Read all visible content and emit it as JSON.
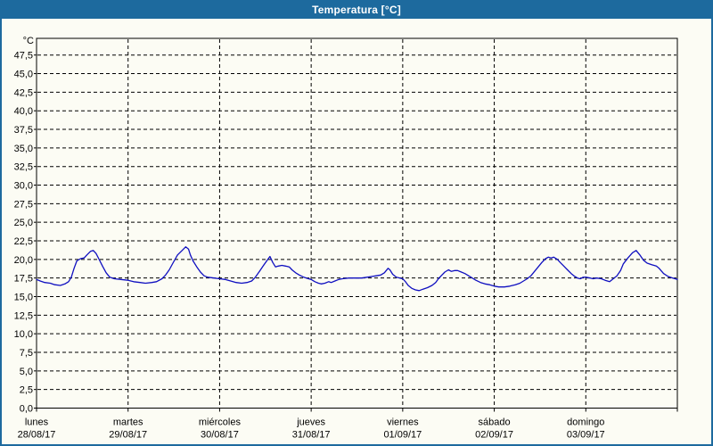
{
  "window": {
    "title": "Temperatura [°C]"
  },
  "colors": {
    "titlebar_bg": "#1d6a9e",
    "titlebar_text": "#ffffff",
    "frame_border": "#1d6a9e",
    "background": "#fcfcf4",
    "grid": "#000000",
    "axis": "#000000",
    "text": "#000000",
    "line": "#0f0fc0"
  },
  "chart_data": {
    "type": "line",
    "title": "Temperatura [°C]",
    "xlabel": "",
    "ylabel": "°C",
    "ylim": [
      0,
      47.5
    ],
    "grid": true,
    "legend": "none",
    "y_axis": {
      "unit_label": "°C",
      "min": 0,
      "max": 47.5,
      "tick_step": 2.5,
      "tick_labels": [
        "0,0",
        "2,5",
        "5,0",
        "7,5",
        "10,0",
        "12,5",
        "15,0",
        "17,5",
        "20,0",
        "22,5",
        "25,0",
        "27,5",
        "30,0",
        "32,5",
        "35,0",
        "37,5",
        "40,0",
        "42,5",
        "45,0",
        "47,5"
      ]
    },
    "x_axis": {
      "days": [
        {
          "name": "lunes",
          "date": "28/08/17"
        },
        {
          "name": "martes",
          "date": "29/08/17"
        },
        {
          "name": "miércoles",
          "date": "30/08/17"
        },
        {
          "name": "jueves",
          "date": "31/08/17"
        },
        {
          "name": "viernes",
          "date": "01/09/17"
        },
        {
          "name": "sábado",
          "date": "02/09/17"
        },
        {
          "name": "domingo",
          "date": "03/09/17"
        }
      ]
    },
    "series": [
      {
        "name": "Temperatura",
        "color": "#0f0fc0",
        "points": [
          [
            0.0,
            17.3
          ],
          [
            0.04,
            17.1
          ],
          [
            0.09,
            16.9
          ],
          [
            0.15,
            16.8
          ],
          [
            0.2,
            16.6
          ],
          [
            0.26,
            16.5
          ],
          [
            0.31,
            16.7
          ],
          [
            0.35,
            17.0
          ],
          [
            0.38,
            17.6
          ],
          [
            0.41,
            18.8
          ],
          [
            0.44,
            19.8
          ],
          [
            0.48,
            20.1
          ],
          [
            0.52,
            20.2
          ],
          [
            0.55,
            20.6
          ],
          [
            0.59,
            21.1
          ],
          [
            0.62,
            21.2
          ],
          [
            0.65,
            20.8
          ],
          [
            0.68,
            20.1
          ],
          [
            0.72,
            19.1
          ],
          [
            0.76,
            18.2
          ],
          [
            0.8,
            17.6
          ],
          [
            0.85,
            17.4
          ],
          [
            0.92,
            17.3
          ],
          [
            1.0,
            17.2
          ],
          [
            1.06,
            17.0
          ],
          [
            1.13,
            16.9
          ],
          [
            1.19,
            16.8
          ],
          [
            1.26,
            16.9
          ],
          [
            1.31,
            17.0
          ],
          [
            1.37,
            17.4
          ],
          [
            1.41,
            17.9
          ],
          [
            1.45,
            18.6
          ],
          [
            1.49,
            19.5
          ],
          [
            1.54,
            20.6
          ],
          [
            1.59,
            21.2
          ],
          [
            1.63,
            21.7
          ],
          [
            1.66,
            21.4
          ],
          [
            1.68,
            20.6
          ],
          [
            1.71,
            19.8
          ],
          [
            1.75,
            19.0
          ],
          [
            1.79,
            18.3
          ],
          [
            1.83,
            17.8
          ],
          [
            1.87,
            17.6
          ],
          [
            1.94,
            17.5
          ],
          [
            2.0,
            17.4
          ],
          [
            2.06,
            17.3
          ],
          [
            2.12,
            17.1
          ],
          [
            2.18,
            16.9
          ],
          [
            2.24,
            16.8
          ],
          [
            2.3,
            16.9
          ],
          [
            2.35,
            17.1
          ],
          [
            2.39,
            17.6
          ],
          [
            2.43,
            18.3
          ],
          [
            2.48,
            19.2
          ],
          [
            2.52,
            19.9
          ],
          [
            2.55,
            20.4
          ],
          [
            2.58,
            19.6
          ],
          [
            2.61,
            19.0
          ],
          [
            2.64,
            19.1
          ],
          [
            2.68,
            19.2
          ],
          [
            2.72,
            19.1
          ],
          [
            2.76,
            19.0
          ],
          [
            2.79,
            18.6
          ],
          [
            2.83,
            18.2
          ],
          [
            2.87,
            17.9
          ],
          [
            2.92,
            17.6
          ],
          [
            2.97,
            17.4
          ],
          [
            3.0,
            17.3
          ],
          [
            3.04,
            17.0
          ],
          [
            3.08,
            16.8
          ],
          [
            3.11,
            16.7
          ],
          [
            3.15,
            16.8
          ],
          [
            3.19,
            17.0
          ],
          [
            3.22,
            16.9
          ],
          [
            3.26,
            17.1
          ],
          [
            3.3,
            17.3
          ],
          [
            3.34,
            17.4
          ],
          [
            3.41,
            17.5
          ],
          [
            3.48,
            17.5
          ],
          [
            3.55,
            17.5
          ],
          [
            3.61,
            17.6
          ],
          [
            3.66,
            17.7
          ],
          [
            3.71,
            17.8
          ],
          [
            3.76,
            17.9
          ],
          [
            3.8,
            18.2
          ],
          [
            3.84,
            18.8
          ],
          [
            3.86,
            18.6
          ],
          [
            3.89,
            18.0
          ],
          [
            3.93,
            17.6
          ],
          [
            3.97,
            17.5
          ],
          [
            4.0,
            17.4
          ],
          [
            4.03,
            17.0
          ],
          [
            4.06,
            16.5
          ],
          [
            4.1,
            16.1
          ],
          [
            4.14,
            15.9
          ],
          [
            4.18,
            15.8
          ],
          [
            4.22,
            16.0
          ],
          [
            4.27,
            16.2
          ],
          [
            4.32,
            16.5
          ],
          [
            4.36,
            16.9
          ],
          [
            4.39,
            17.4
          ],
          [
            4.42,
            17.8
          ],
          [
            4.46,
            18.3
          ],
          [
            4.5,
            18.6
          ],
          [
            4.53,
            18.4
          ],
          [
            4.57,
            18.5
          ],
          [
            4.6,
            18.5
          ],
          [
            4.64,
            18.3
          ],
          [
            4.68,
            18.1
          ],
          [
            4.72,
            17.8
          ],
          [
            4.76,
            17.5
          ],
          [
            4.8,
            17.2
          ],
          [
            4.85,
            16.9
          ],
          [
            4.9,
            16.7
          ],
          [
            4.95,
            16.6
          ],
          [
            5.0,
            16.4
          ],
          [
            5.05,
            16.3
          ],
          [
            5.11,
            16.3
          ],
          [
            5.17,
            16.4
          ],
          [
            5.23,
            16.6
          ],
          [
            5.28,
            16.8
          ],
          [
            5.32,
            17.1
          ],
          [
            5.36,
            17.4
          ],
          [
            5.4,
            17.8
          ],
          [
            5.44,
            18.4
          ],
          [
            5.48,
            19.0
          ],
          [
            5.52,
            19.6
          ],
          [
            5.56,
            20.1
          ],
          [
            5.59,
            20.3
          ],
          [
            5.62,
            20.2
          ],
          [
            5.65,
            20.3
          ],
          [
            5.69,
            20.0
          ],
          [
            5.72,
            19.6
          ],
          [
            5.76,
            19.1
          ],
          [
            5.8,
            18.6
          ],
          [
            5.84,
            18.1
          ],
          [
            5.88,
            17.7
          ],
          [
            5.91,
            17.5
          ],
          [
            5.94,
            17.4
          ],
          [
            5.97,
            17.6
          ],
          [
            6.0,
            17.6
          ],
          [
            6.05,
            17.5
          ],
          [
            6.08,
            17.4
          ],
          [
            6.12,
            17.5
          ],
          [
            6.17,
            17.4
          ],
          [
            6.21,
            17.2
          ],
          [
            6.26,
            17.0
          ],
          [
            6.3,
            17.4
          ],
          [
            6.34,
            17.8
          ],
          [
            6.38,
            18.5
          ],
          [
            6.41,
            19.4
          ],
          [
            6.46,
            20.2
          ],
          [
            6.51,
            20.9
          ],
          [
            6.55,
            21.2
          ],
          [
            6.59,
            20.6
          ],
          [
            6.63,
            19.9
          ],
          [
            6.67,
            19.5
          ],
          [
            6.72,
            19.3
          ],
          [
            6.77,
            19.1
          ],
          [
            6.8,
            18.8
          ],
          [
            6.85,
            18.1
          ],
          [
            6.9,
            17.7
          ],
          [
            6.95,
            17.5
          ],
          [
            7.0,
            17.3
          ]
        ]
      }
    ]
  }
}
